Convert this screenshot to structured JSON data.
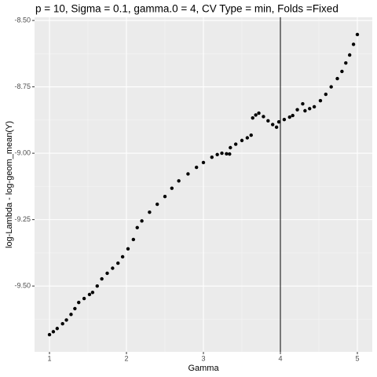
{
  "chart_data": {
    "type": "scatter",
    "title": "p = 10, Sigma = 0.1, gamma.0 = 4, CV Type = min, Folds =Fixed",
    "x_label": "Gamma",
    "y_label": "log-Lambda - log-geom_mean(Y)",
    "color": "#000000",
    "vline": 4,
    "grid": true,
    "xlim": [
      0.806,
      5.194
    ],
    "ylim": [
      -9.748,
      -8.488
    ],
    "xticks": [
      1,
      2,
      3,
      4,
      5
    ],
    "yticks": [
      {
        "value": -8.5,
        "label": "-8.50"
      },
      -8.75,
      {
        "value": -9,
        "label": "-9.00"
      },
      -9.25,
      {
        "value": -9.5,
        "label": "-9.50"
      }
    ],
    "xminor": [
      1.5,
      2.5,
      3.5,
      4.5
    ],
    "yminor": [
      -8.625,
      -8.875,
      -9.125,
      -9.375,
      -9.625
    ],
    "x": [
      1.0,
      1.05,
      1.1,
      1.17,
      1.22,
      1.28,
      1.33,
      1.38,
      1.45,
      1.52,
      1.56,
      1.62,
      1.68,
      1.75,
      1.82,
      1.89,
      1.95,
      2.02,
      2.09,
      2.14,
      2.2,
      2.3,
      2.4,
      2.5,
      2.59,
      2.68,
      2.8,
      2.91,
      3.0,
      3.11,
      3.18,
      3.24,
      3.3,
      3.34,
      3.35,
      3.42,
      3.5,
      3.57,
      3.62,
      3.64,
      3.68,
      3.72,
      3.78,
      3.84,
      3.9,
      3.95,
      3.98,
      4.05,
      4.12,
      4.16,
      4.22,
      4.29,
      4.32,
      4.38,
      4.44,
      4.52,
      4.59,
      4.66,
      4.74,
      4.8,
      4.85,
      4.9,
      4.95,
      5.0
    ],
    "values": [
      -9.683,
      -9.672,
      -9.66,
      -9.642,
      -9.628,
      -9.607,
      -9.585,
      -9.562,
      -9.547,
      -9.532,
      -9.524,
      -9.5,
      -9.473,
      -9.452,
      -9.433,
      -9.414,
      -9.39,
      -9.36,
      -9.325,
      -9.28,
      -9.255,
      -9.222,
      -9.192,
      -9.163,
      -9.132,
      -9.104,
      -9.078,
      -9.053,
      -9.035,
      -9.015,
      -9.005,
      -9.0,
      -9.002,
      -9.003,
      -8.979,
      -8.966,
      -8.952,
      -8.942,
      -8.932,
      -8.867,
      -8.856,
      -8.849,
      -8.862,
      -8.878,
      -8.892,
      -8.902,
      -8.882,
      -8.873,
      -8.864,
      -8.858,
      -8.836,
      -8.814,
      -8.84,
      -8.832,
      -8.825,
      -8.802,
      -8.778,
      -8.75,
      -8.719,
      -8.692,
      -8.66,
      -8.63,
      -8.59,
      -8.553
    ]
  }
}
